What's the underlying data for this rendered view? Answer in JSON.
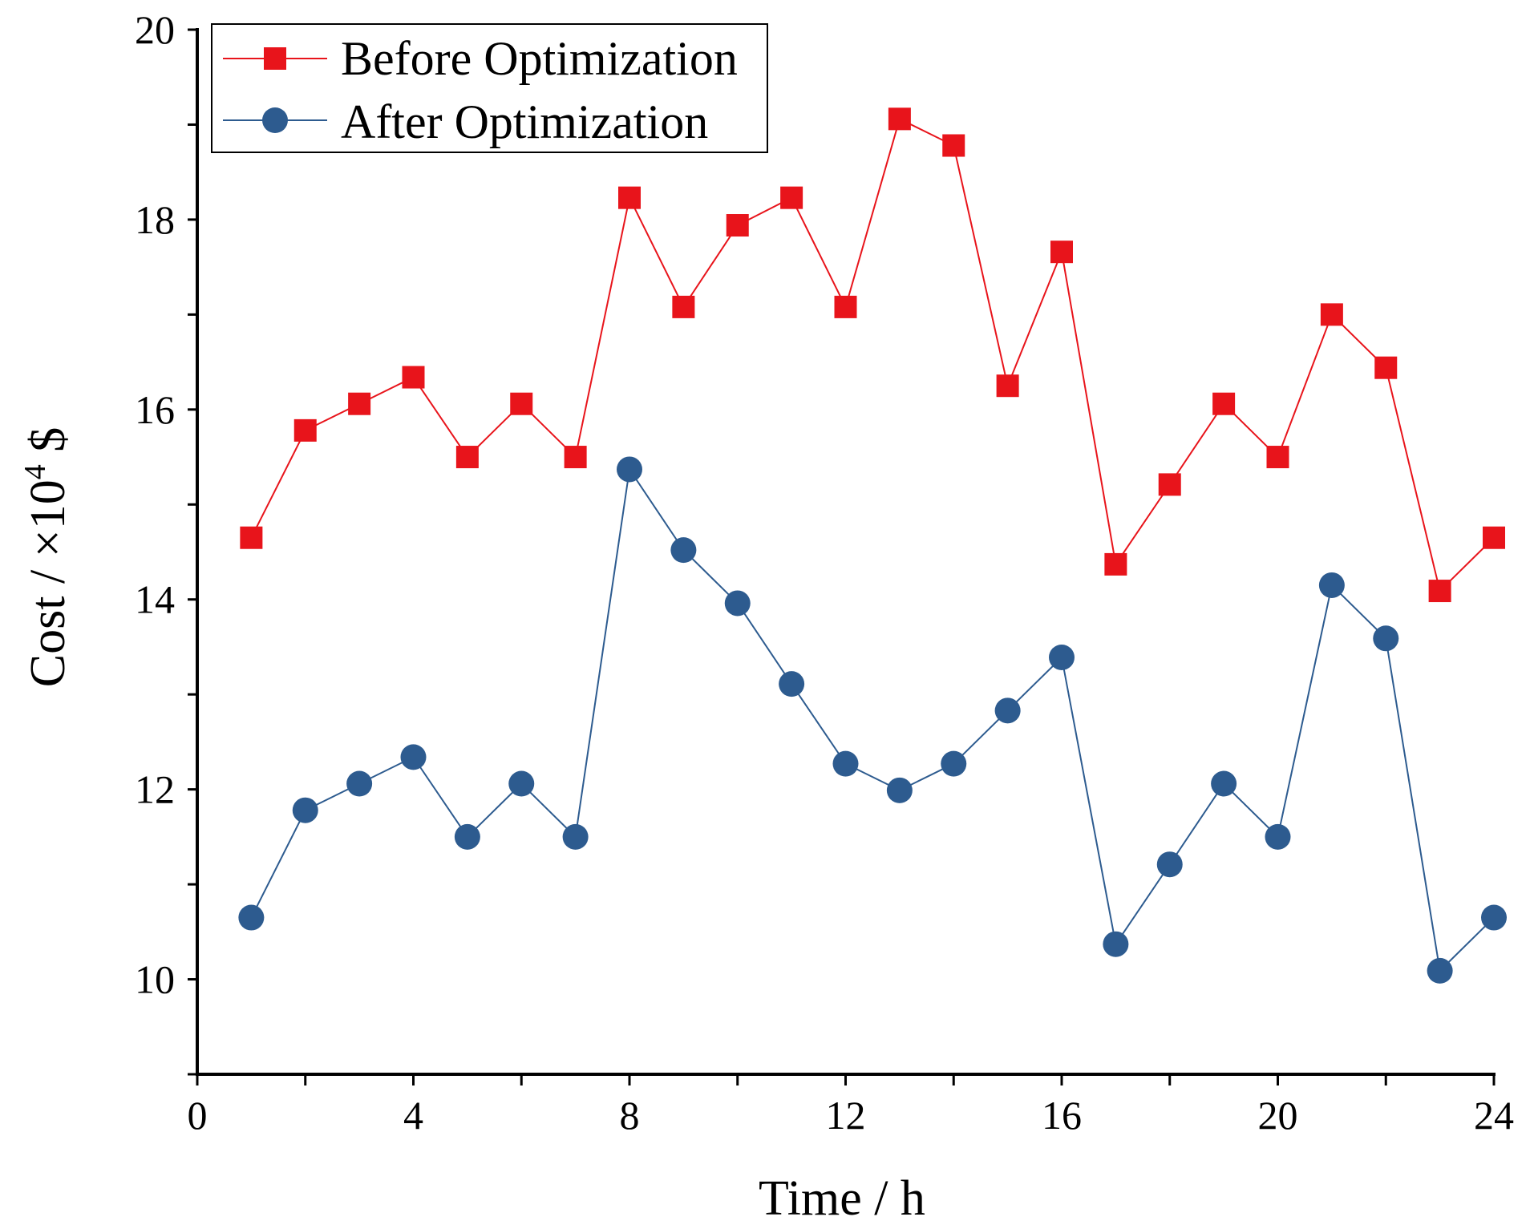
{
  "chart_data": {
    "type": "line",
    "title": "",
    "xlabel": "Time / h",
    "ylabel": "Cost / ×10",
    "ylabel_exponent": "4",
    "ylabel_unit": "$",
    "xlim": [
      0,
      24
    ],
    "ylim": [
      9,
      20
    ],
    "x_ticks": [
      0,
      4,
      8,
      12,
      16,
      20,
      24
    ],
    "y_ticks": [
      10,
      12,
      14,
      16,
      18,
      20
    ],
    "grid": false,
    "legend_position": "top-left",
    "x": [
      1,
      2,
      3,
      4,
      5,
      6,
      7,
      8,
      9,
      10,
      11,
      12,
      13,
      14,
      15,
      16,
      17,
      18,
      19,
      20,
      21,
      22,
      23,
      24
    ],
    "series": [
      {
        "name": "Before Optimization",
        "marker": "square",
        "color": "#e8141b",
        "values": [
          14.65,
          15.78,
          16.06,
          16.34,
          15.5,
          16.06,
          15.5,
          18.23,
          17.08,
          17.94,
          18.23,
          17.08,
          19.06,
          18.78,
          16.25,
          17.66,
          14.37,
          15.21,
          16.06,
          15.5,
          17.0,
          16.44,
          14.09,
          14.65
        ]
      },
      {
        "name": "After Optimization",
        "marker": "circle",
        "color": "#2d5b8f",
        "values": [
          10.65,
          11.78,
          12.06,
          12.34,
          11.5,
          12.06,
          11.5,
          15.37,
          14.52,
          13.96,
          13.11,
          12.27,
          11.99,
          12.27,
          12.83,
          13.39,
          10.37,
          11.21,
          12.06,
          11.5,
          14.15,
          13.59,
          10.09,
          10.65
        ]
      }
    ]
  }
}
